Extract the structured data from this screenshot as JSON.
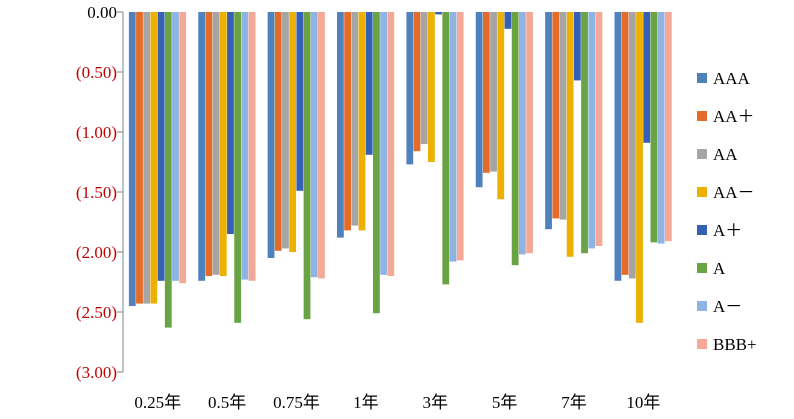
{
  "chart_data": {
    "type": "bar",
    "title": "",
    "xlabel": "",
    "ylabel": "",
    "ylim": [
      -3.0,
      0.0
    ],
    "ytick_values": [
      0,
      -0.5,
      -1.0,
      -1.5,
      -2.0,
      -2.5,
      -3.0
    ],
    "ytick_labels": [
      "0.00",
      "(0.50)",
      "(1.00)",
      "(1.50)",
      "(2.00)",
      "(2.50)",
      "(3.00)"
    ],
    "ytick_colors": [
      "#000000",
      "#c00000",
      "#c00000",
      "#c00000",
      "#c00000",
      "#c00000",
      "#c00000"
    ],
    "categories": [
      "0.25年",
      "0.5年",
      "0.75年",
      "1年",
      "3年",
      "5年",
      "7年",
      "10年"
    ],
    "legend_position": "right",
    "series": [
      {
        "name": "AAA",
        "color": "#4f81bd",
        "values": [
          -2.45,
          -2.24,
          -2.05,
          -1.88,
          -1.27,
          -1.46,
          -1.81,
          -2.24
        ]
      },
      {
        "name": "AA＋",
        "color": "#e46c2a",
        "values": [
          -2.43,
          -2.2,
          -1.99,
          -1.82,
          -1.16,
          -1.34,
          -1.72,
          -2.19
        ]
      },
      {
        "name": "AA",
        "color": "#a5a5a5",
        "values": [
          -2.43,
          -2.19,
          -1.97,
          -1.78,
          -1.1,
          -1.33,
          -1.73,
          -2.22
        ]
      },
      {
        "name": "AA－",
        "color": "#ebb000",
        "values": [
          -2.43,
          -2.2,
          -2.0,
          -1.82,
          -1.25,
          -1.56,
          -2.04,
          -2.59
        ]
      },
      {
        "name": "A＋",
        "color": "#3560b5",
        "values": [
          -2.24,
          -1.85,
          -1.49,
          -1.19,
          -0.02,
          -0.14,
          -0.57,
          -1.09
        ]
      },
      {
        "name": "A",
        "color": "#6aa343",
        "values": [
          -2.63,
          -2.59,
          -2.56,
          -2.51,
          -2.27,
          -2.11,
          -2.01,
          -1.92
        ]
      },
      {
        "name": "A－",
        "color": "#8fb4e3",
        "values": [
          -2.24,
          -2.23,
          -2.21,
          -2.19,
          -2.08,
          -2.02,
          -1.97,
          -1.93
        ]
      },
      {
        "name": "BBB+",
        "color": "#f4a997",
        "values": [
          -2.26,
          -2.24,
          -2.22,
          -2.2,
          -2.07,
          -2.01,
          -1.95,
          -1.91
        ]
      }
    ]
  }
}
